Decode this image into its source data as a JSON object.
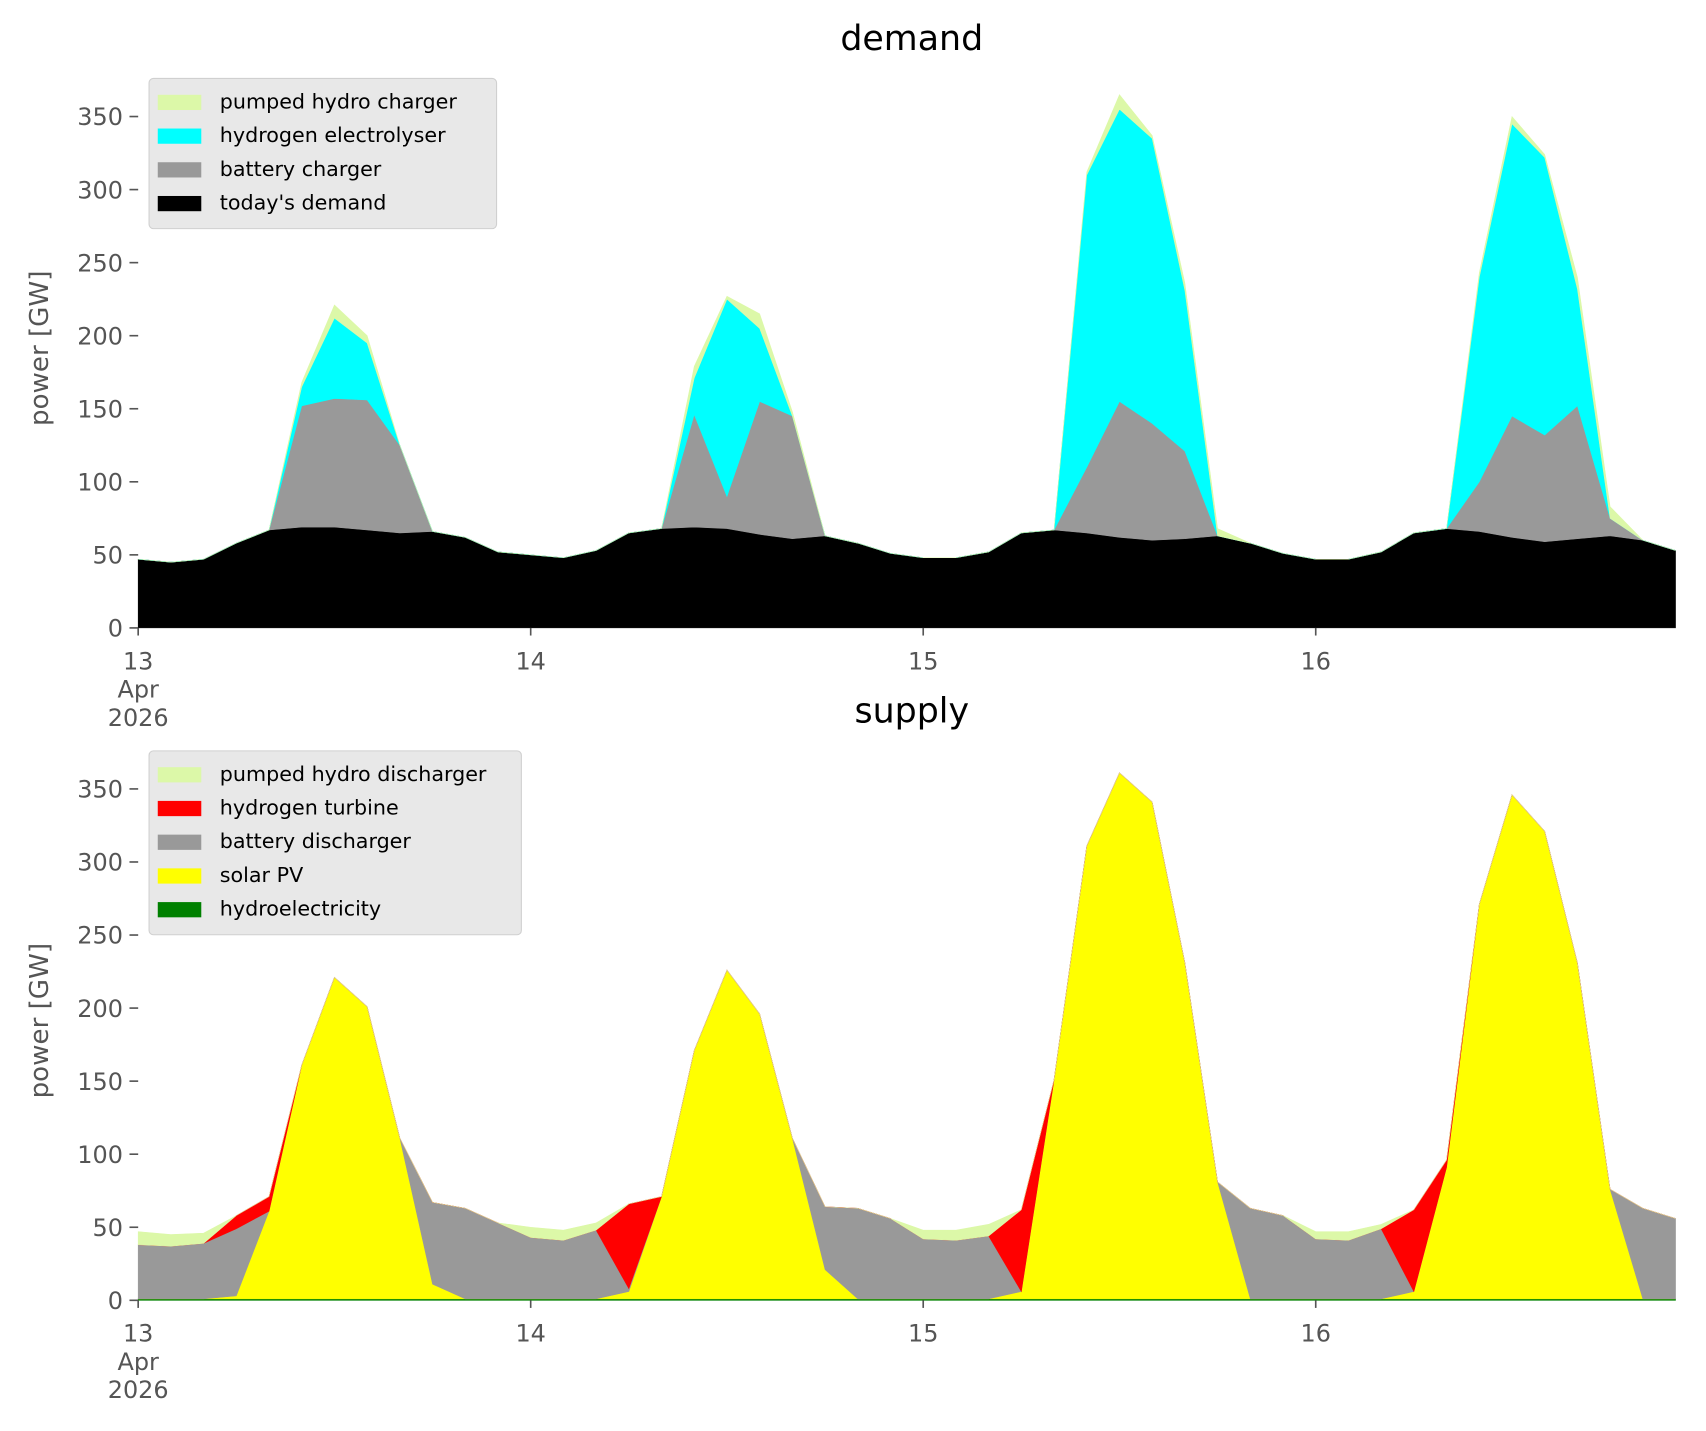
{
  "chart_data": [
    {
      "type": "stacked-area",
      "title": "demand",
      "y_label": "power [GW]",
      "legend": "upper left",
      "x": [
        0,
        2,
        4,
        6,
        8,
        10,
        12,
        14,
        16,
        18,
        20,
        22,
        24,
        26,
        28,
        30,
        32,
        34,
        36,
        38,
        40,
        42,
        44,
        46,
        48,
        50,
        52,
        54,
        56,
        58,
        60,
        62,
        64,
        66,
        68,
        70,
        72,
        74,
        76,
        78,
        80,
        82,
        84,
        86,
        88,
        90,
        92,
        94
      ],
      "xlim": [
        0,
        94
      ],
      "xticks": [
        {
          "value": 0,
          "label": "13\nApr\n2026"
        },
        {
          "value": 24,
          "label": "14"
        },
        {
          "value": 48,
          "label": "15"
        },
        {
          "value": 72,
          "label": "16"
        }
      ],
      "ylim": [
        0,
        366
      ],
      "yticks": [
        0,
        50,
        100,
        150,
        200,
        250,
        300,
        350
      ],
      "series": [
        {
          "name": "pumped hydro charger",
          "color": "#dcf8a8",
          "values": [
            0,
            0,
            0,
            0,
            0,
            3,
            9,
            5,
            0,
            0,
            0,
            0,
            0,
            0,
            0,
            0,
            0,
            8,
            2,
            10,
            3,
            0,
            0,
            0,
            0,
            0,
            0,
            0,
            0,
            2,
            10,
            2,
            5,
            5,
            0,
            0,
            0,
            0,
            0,
            0,
            0,
            3,
            5,
            2,
            8,
            8,
            0,
            0
          ]
        },
        {
          "name": "hydrogen electrolyser",
          "color": "#00ffff",
          "values": [
            0,
            0,
            0,
            0,
            0,
            13,
            55,
            39,
            0,
            0,
            0,
            0,
            0,
            0,
            0,
            0,
            0,
            25,
            135,
            50,
            0,
            0,
            0,
            0,
            0,
            0,
            0,
            0,
            0,
            200,
            200,
            195,
            110,
            0,
            0,
            0,
            0,
            0,
            0,
            0,
            0,
            140,
            200,
            190,
            80,
            0,
            0,
            0
          ]
        },
        {
          "name": "battery charger",
          "color": "#999999",
          "values": [
            0,
            0,
            0,
            0,
            0,
            83,
            88,
            89,
            60,
            0,
            0,
            0,
            0,
            0,
            0,
            0,
            0,
            77,
            22,
            91,
            84,
            0,
            0,
            0,
            0,
            0,
            0,
            0,
            0,
            45,
            93,
            80,
            60,
            0,
            0,
            0,
            0,
            0,
            0,
            0,
            0,
            34,
            83,
            73,
            91,
            12,
            0,
            0
          ]
        },
        {
          "name": "today's demand",
          "color": "#000000",
          "values": [
            47,
            45,
            47,
            58,
            67,
            69,
            69,
            67,
            65,
            66,
            62,
            52,
            50,
            48,
            53,
            65,
            68,
            69,
            68,
            64,
            61,
            63,
            58,
            51,
            48,
            48,
            52,
            65,
            67,
            65,
            62,
            60,
            61,
            63,
            58,
            51,
            47,
            47,
            52,
            65,
            68,
            66,
            62,
            59,
            61,
            63,
            60,
            53
          ]
        }
      ]
    },
    {
      "type": "stacked-area",
      "title": "supply",
      "y_label": "power [GW]",
      "legend": "upper left",
      "x": [
        0,
        2,
        4,
        6,
        8,
        10,
        12,
        14,
        16,
        18,
        20,
        22,
        24,
        26,
        28,
        30,
        32,
        34,
        36,
        38,
        40,
        42,
        44,
        46,
        48,
        50,
        52,
        54,
        56,
        58,
        60,
        62,
        64,
        66,
        68,
        70,
        72,
        74,
        76,
        78,
        80,
        82,
        84,
        86,
        88,
        90,
        92,
        94
      ],
      "xlim": [
        0,
        94
      ],
      "xticks": [
        {
          "value": 0,
          "label": "13\nApr\n2026"
        },
        {
          "value": 24,
          "label": "14"
        },
        {
          "value": 48,
          "label": "15"
        },
        {
          "value": 72,
          "label": "16"
        }
      ],
      "ylim": [
        0,
        366
      ],
      "yticks": [
        0,
        50,
        100,
        150,
        200,
        250,
        300,
        350
      ],
      "series": [
        {
          "name": "pumped hydro discharger",
          "color": "#dcf8a8",
          "values": [
            9,
            8,
            7,
            0,
            0,
            0,
            0,
            0,
            0,
            0,
            0,
            0,
            7,
            7,
            5,
            0,
            0,
            0,
            0,
            0,
            0,
            0,
            0,
            0,
            6,
            7,
            8,
            0,
            0,
            0,
            0,
            0,
            0,
            0,
            0,
            0,
            5,
            6,
            3,
            0,
            0,
            0,
            0,
            0,
            0,
            0,
            0,
            0
          ]
        },
        {
          "name": "hydrogen turbine",
          "color": "#ff0000",
          "values": [
            0,
            0,
            0,
            9,
            10,
            0,
            0,
            0,
            0,
            0,
            0,
            0,
            0,
            0,
            0,
            58,
            0,
            0,
            0,
            0,
            0,
            0,
            0,
            0,
            0,
            0,
            0,
            56,
            0,
            0,
            0,
            0,
            0,
            0,
            0,
            0,
            0,
            0,
            0,
            56,
            5,
            0,
            0,
            0,
            0,
            0,
            0,
            0
          ]
        },
        {
          "name": "battery discharger",
          "color": "#999999",
          "values": [
            37,
            36,
            38,
            46,
            0,
            0,
            0,
            0,
            0,
            56,
            62,
            52,
            42,
            40,
            47,
            2,
            0,
            0,
            0,
            0,
            0,
            43,
            62,
            55,
            41,
            40,
            43,
            0,
            0,
            0,
            0,
            0,
            0,
            0,
            62,
            57,
            41,
            40,
            48,
            0,
            0,
            0,
            0,
            0,
            0,
            0,
            62,
            55
          ]
        },
        {
          "name": "solar PV",
          "color": "#ffff00",
          "values": [
            0,
            0,
            0,
            2,
            60,
            160,
            220,
            200,
            110,
            10,
            0,
            0,
            0,
            0,
            0,
            5,
            70,
            170,
            225,
            195,
            110,
            20,
            0,
            0,
            0,
            0,
            0,
            5,
            150,
            310,
            360,
            340,
            230,
            80,
            0,
            0,
            0,
            0,
            0,
            5,
            90,
            270,
            345,
            320,
            230,
            75,
            0,
            0
          ]
        },
        {
          "name": "hydroelectricity",
          "color": "#008000",
          "values": [
            1,
            1,
            1,
            1,
            1,
            1,
            1,
            1,
            1,
            1,
            1,
            1,
            1,
            1,
            1,
            1,
            1,
            1,
            1,
            1,
            1,
            1,
            1,
            1,
            1,
            1,
            1,
            1,
            1,
            1,
            1,
            1,
            1,
            1,
            1,
            1,
            1,
            1,
            1,
            1,
            1,
            1,
            1,
            1,
            1,
            1,
            1,
            1
          ]
        }
      ]
    }
  ]
}
